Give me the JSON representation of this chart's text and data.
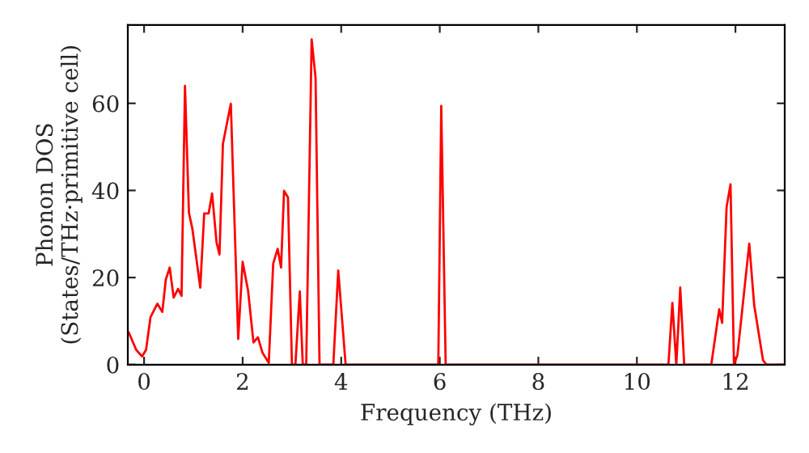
{
  "chart_data": {
    "type": "line",
    "xlabel": "Frequency (THz)",
    "ylabel": "Phonon DOS\n(States/THz·primitive cell)",
    "xlim": [
      -0.33,
      13.0
    ],
    "ylim": [
      0,
      78
    ],
    "xticks": [
      0,
      2,
      4,
      6,
      8,
      10,
      12
    ],
    "yticks": [
      0,
      20,
      40,
      60
    ],
    "grid": false,
    "legend": false,
    "series": [
      {
        "color": "#ff0000",
        "x": [
          -0.31,
          -0.16,
          -0.04,
          0.04,
          0.13,
          0.27,
          0.37,
          0.44,
          0.52,
          0.6,
          0.69,
          0.76,
          0.83,
          0.91,
          0.98,
          1.14,
          1.22,
          1.31,
          1.38,
          1.47,
          1.53,
          1.6,
          1.76,
          1.91,
          2.0,
          2.11,
          2.22,
          2.31,
          2.4,
          2.53,
          2.62,
          2.71,
          2.78,
          2.84,
          2.92,
          3.0,
          3.07,
          3.16,
          3.22,
          3.29,
          3.4,
          3.48,
          3.56,
          3.84,
          3.94,
          4.09,
          5.97,
          6.03,
          6.12,
          10.64,
          10.72,
          10.8,
          10.88,
          10.96,
          11.51,
          11.67,
          11.73,
          11.82,
          11.9,
          11.97,
          12.04,
          12.28,
          12.38,
          12.56,
          12.63,
          13.0
        ],
        "values": [
          7.4,
          3.4,
          1.9,
          3.4,
          10.9,
          14,
          12.1,
          19.5,
          22.3,
          15.4,
          17.4,
          15.8,
          64,
          34.9,
          31.2,
          17.7,
          34.7,
          34.7,
          39.3,
          28.1,
          25.3,
          50.7,
          59.9,
          5.9,
          23.6,
          17,
          5.1,
          6.3,
          2.8,
          0.4,
          23.2,
          26.6,
          22.3,
          39.9,
          38.4,
          0,
          0,
          16.8,
          0,
          0,
          74.7,
          65.8,
          0,
          0,
          21.6,
          0,
          0,
          59.4,
          0,
          0,
          14.2,
          0,
          17.7,
          0,
          0,
          12.7,
          9.6,
          36.2,
          41.4,
          0,
          2.2,
          27.8,
          13.7,
          1.0,
          0,
          0
        ]
      }
    ]
  }
}
